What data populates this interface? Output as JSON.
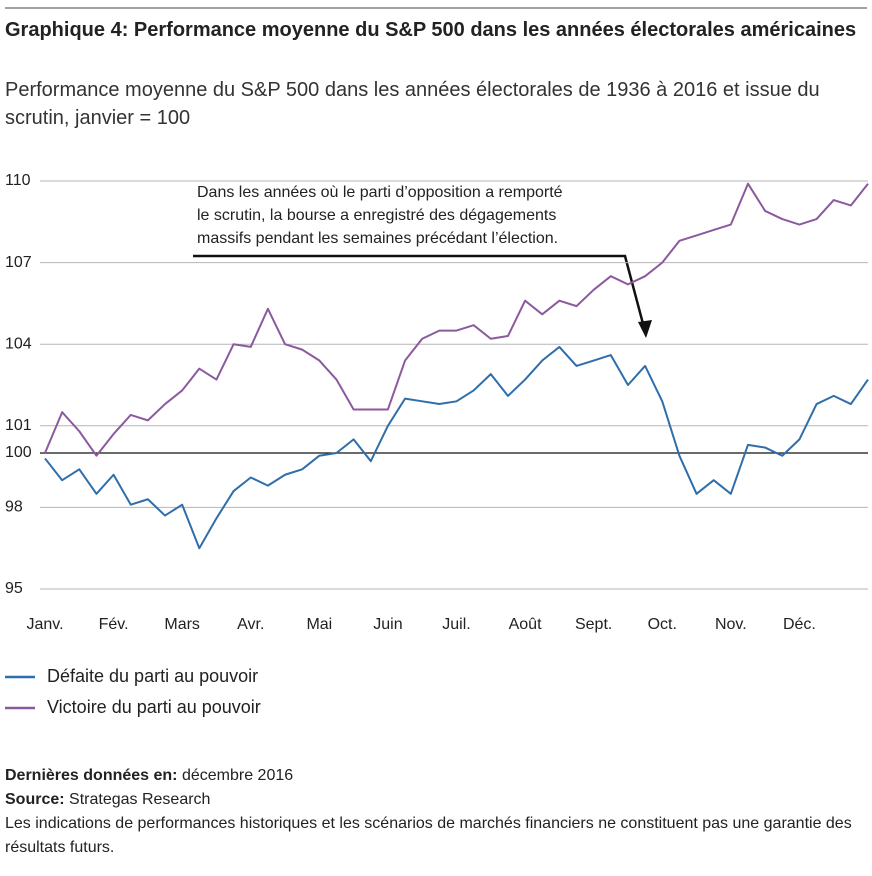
{
  "chart_data": {
    "type": "line",
    "title": "Graphique 4: Performance moyenne du S&P 500 dans les années électorales américaines",
    "subtitle": "Performance moyenne du S&P 500 dans les années électorales de 1936 à 2016 et issue du scrutin, janvier = 100",
    "annotation": [
      "Dans les années où le parti d’opposition a remporté",
      "le scrutin, la bourse a enregistré des dégagements",
      "massifs pendant les semaines précédant l’élection."
    ],
    "x": [
      0,
      0.25,
      0.5,
      0.75,
      1,
      1.25,
      1.5,
      1.75,
      2,
      2.25,
      2.5,
      2.75,
      3,
      3.25,
      3.5,
      3.75,
      4,
      4.25,
      4.5,
      4.75,
      5,
      5.25,
      5.5,
      5.75,
      6,
      6.25,
      6.5,
      6.75,
      7,
      7.25,
      7.5,
      7.75,
      8,
      8.25,
      8.5,
      8.75,
      9,
      9.25,
      9.5,
      9.75,
      10,
      10.25,
      10.5,
      10.75,
      11,
      11.25,
      11.5,
      11.75,
      12
    ],
    "xlim": [
      0,
      12
    ],
    "xticks": [
      {
        "value": 0,
        "label": "Janv."
      },
      {
        "value": 1,
        "label": "Fév."
      },
      {
        "value": 2,
        "label": "Mars"
      },
      {
        "value": 3,
        "label": "Avr."
      },
      {
        "value": 4,
        "label": "Mai"
      },
      {
        "value": 5,
        "label": "Juin"
      },
      {
        "value": 6,
        "label": "Juil."
      },
      {
        "value": 7,
        "label": "Août"
      },
      {
        "value": 8,
        "label": "Sept."
      },
      {
        "value": 9,
        "label": "Oct."
      },
      {
        "value": 10,
        "label": "Nov."
      },
      {
        "value": 11,
        "label": "Déc."
      }
    ],
    "ylim": [
      95,
      110
    ],
    "yticks": [
      95,
      98,
      100,
      101,
      104,
      107,
      110
    ],
    "baseline": 100,
    "grid": true,
    "legend": "bottom-left",
    "series": [
      {
        "name": "Défaite du parti au pouvoir",
        "color": "#2f6eaa",
        "values": [
          99.8,
          99.0,
          99.4,
          98.5,
          99.2,
          98.1,
          98.3,
          97.7,
          98.1,
          96.5,
          97.6,
          98.6,
          99.1,
          98.8,
          99.2,
          99.4,
          99.9,
          100.0,
          100.5,
          99.7,
          101.0,
          102.0,
          101.9,
          101.8,
          101.9,
          102.3,
          102.9,
          102.1,
          102.7,
          103.4,
          103.9,
          103.2,
          103.4,
          103.6,
          102.5,
          103.2,
          101.9,
          99.9,
          98.5,
          99.0,
          98.5,
          100.3,
          100.2,
          99.9,
          100.5,
          101.8,
          102.1,
          101.8,
          102.7
        ]
      },
      {
        "name": "Victoire du parti au pouvoir",
        "color": "#8b5a9e",
        "values": [
          100.0,
          101.5,
          100.8,
          99.9,
          100.7,
          101.4,
          101.2,
          101.8,
          102.3,
          103.1,
          102.7,
          104.0,
          103.9,
          105.3,
          104.0,
          103.8,
          103.4,
          102.7,
          101.6,
          101.6,
          101.6,
          103.4,
          104.2,
          104.5,
          104.5,
          104.7,
          104.2,
          104.3,
          105.6,
          105.1,
          105.6,
          105.4,
          106.0,
          106.5,
          106.2,
          106.5,
          107.0,
          107.8,
          108.0,
          108.2,
          108.4,
          109.9,
          108.9,
          108.6,
          108.4,
          108.6,
          109.3,
          109.1,
          109.9
        ]
      }
    ],
    "notes": [
      {
        "label": "Dernières données en:",
        "text": "décembre 2016"
      },
      {
        "label": "Source:",
        "text": "Strategas Research"
      },
      {
        "label": "",
        "text": "Les indications de performances historiques et les scénarios de marchés financiers ne constituent pas une garantie des résultats futurs."
      }
    ]
  }
}
